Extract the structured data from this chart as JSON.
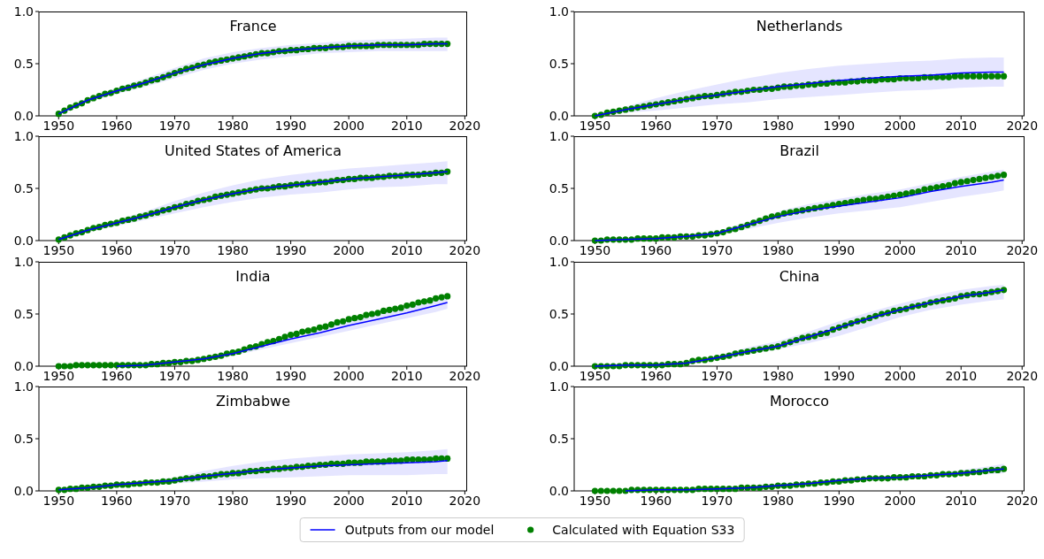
{
  "chart_data": [
    {
      "type": "line",
      "title": "France",
      "xlim": [
        1946.6,
        2020.4
      ],
      "xticks": [
        1950,
        1960,
        1970,
        1980,
        1990,
        2000,
        2010,
        2020
      ],
      "ylim": [
        0,
        1
      ],
      "yticks": [
        {
          "value": 0,
          "label": "0.0"
        },
        {
          "value": 0.5,
          "label": "0.5"
        },
        {
          "value": 1,
          "label": "1.0"
        }
      ],
      "x": [
        1950,
        1951,
        1952,
        1953,
        1954,
        1955,
        1956,
        1957,
        1958,
        1959,
        1960,
        1961,
        1962,
        1963,
        1964,
        1965,
        1966,
        1967,
        1968,
        1969,
        1970,
        1971,
        1972,
        1973,
        1974,
        1975,
        1976,
        1977,
        1978,
        1979,
        1980,
        1981,
        1982,
        1983,
        1984,
        1985,
        1986,
        1987,
        1988,
        1989,
        1990,
        1991,
        1992,
        1993,
        1994,
        1995,
        1996,
        1997,
        1998,
        1999,
        2000,
        2001,
        2002,
        2003,
        2004,
        2005,
        2006,
        2007,
        2008,
        2009,
        2010,
        2011,
        2012,
        2013,
        2014,
        2015,
        2016,
        2017
      ],
      "series": [
        {
          "color": "#0000ff",
          "x": [
            1950,
            1955,
            1960,
            1965,
            1970,
            1975,
            1980,
            1985,
            1990,
            1995,
            2000,
            2005,
            2010,
            2015,
            2017
          ],
          "values": [
            0.02,
            0.15,
            0.24,
            0.32,
            0.41,
            0.49,
            0.55,
            0.6,
            0.63,
            0.65,
            0.67,
            0.68,
            0.68,
            0.69,
            0.69
          ],
          "lower": [
            0.02,
            0.13,
            0.21,
            0.28,
            0.36,
            0.44,
            0.5,
            0.54,
            0.57,
            0.6,
            0.61,
            0.62,
            0.62,
            0.62,
            0.62
          ],
          "upper": [
            0.02,
            0.17,
            0.27,
            0.36,
            0.46,
            0.55,
            0.61,
            0.65,
            0.68,
            0.7,
            0.72,
            0.73,
            0.74,
            0.75,
            0.75
          ]
        },
        {
          "type": "scatter",
          "color": "#008000",
          "marker": "circle",
          "values": [
            0.02,
            0.05,
            0.08,
            0.1,
            0.12,
            0.15,
            0.17,
            0.19,
            0.21,
            0.22,
            0.24,
            0.26,
            0.27,
            0.29,
            0.3,
            0.32,
            0.34,
            0.35,
            0.37,
            0.39,
            0.41,
            0.43,
            0.45,
            0.46,
            0.48,
            0.49,
            0.51,
            0.52,
            0.53,
            0.54,
            0.55,
            0.56,
            0.57,
            0.58,
            0.59,
            0.6,
            0.6,
            0.61,
            0.62,
            0.62,
            0.63,
            0.63,
            0.64,
            0.64,
            0.65,
            0.65,
            0.65,
            0.66,
            0.66,
            0.66,
            0.67,
            0.67,
            0.67,
            0.67,
            0.67,
            0.68,
            0.68,
            0.68,
            0.68,
            0.68,
            0.68,
            0.68,
            0.68,
            0.69,
            0.69,
            0.69,
            0.69,
            0.69
          ]
        }
      ]
    },
    {
      "type": "line",
      "title": "Netherlands",
      "xlim": [
        1946.6,
        2020.4
      ],
      "xticks": [
        1950,
        1960,
        1970,
        1980,
        1990,
        2000,
        2010,
        2020
      ],
      "ylim": [
        0,
        1
      ],
      "yticks": [
        {
          "value": 0,
          "label": "0.0"
        },
        {
          "value": 0.5,
          "label": "0.5"
        },
        {
          "value": 1,
          "label": "1.0"
        }
      ],
      "x": [
        1950,
        1951,
        1952,
        1953,
        1954,
        1955,
        1956,
        1957,
        1958,
        1959,
        1960,
        1961,
        1962,
        1963,
        1964,
        1965,
        1966,
        1967,
        1968,
        1969,
        1970,
        1971,
        1972,
        1973,
        1974,
        1975,
        1976,
        1977,
        1978,
        1979,
        1980,
        1981,
        1982,
        1983,
        1984,
        1985,
        1986,
        1987,
        1988,
        1989,
        1990,
        1991,
        1992,
        1993,
        1994,
        1995,
        1996,
        1997,
        1998,
        1999,
        2000,
        2001,
        2002,
        2003,
        2004,
        2005,
        2006,
        2007,
        2008,
        2009,
        2010,
        2011,
        2012,
        2013,
        2014,
        2015,
        2016,
        2017
      ],
      "series": [
        {
          "color": "#0000ff",
          "x": [
            1950,
            1955,
            1960,
            1965,
            1970,
            1975,
            1980,
            1985,
            1990,
            1995,
            2000,
            2005,
            2010,
            2015,
            2017
          ],
          "values": [
            0,
            0.06,
            0.11,
            0.16,
            0.2,
            0.24,
            0.28,
            0.31,
            0.34,
            0.36,
            0.38,
            0.39,
            0.41,
            0.42,
            0.42
          ],
          "lower": [
            0,
            0.03,
            0.05,
            0.08,
            0.11,
            0.13,
            0.16,
            0.18,
            0.2,
            0.22,
            0.24,
            0.25,
            0.27,
            0.28,
            0.28
          ],
          "upper": [
            0,
            0.09,
            0.17,
            0.24,
            0.3,
            0.36,
            0.41,
            0.45,
            0.48,
            0.5,
            0.52,
            0.53,
            0.55,
            0.56,
            0.56
          ]
        },
        {
          "type": "scatter",
          "color": "#008000",
          "marker": "circle",
          "values": [
            0,
            0.01,
            0.03,
            0.04,
            0.05,
            0.06,
            0.07,
            0.08,
            0.09,
            0.1,
            0.11,
            0.12,
            0.13,
            0.14,
            0.15,
            0.16,
            0.17,
            0.18,
            0.19,
            0.19,
            0.2,
            0.21,
            0.22,
            0.23,
            0.23,
            0.24,
            0.25,
            0.25,
            0.26,
            0.26,
            0.27,
            0.28,
            0.28,
            0.29,
            0.29,
            0.3,
            0.3,
            0.31,
            0.31,
            0.32,
            0.32,
            0.32,
            0.33,
            0.33,
            0.34,
            0.34,
            0.34,
            0.35,
            0.35,
            0.35,
            0.36,
            0.36,
            0.36,
            0.36,
            0.37,
            0.37,
            0.37,
            0.37,
            0.37,
            0.38,
            0.38,
            0.38,
            0.38,
            0.38,
            0.38,
            0.38,
            0.38,
            0.38
          ]
        }
      ]
    },
    {
      "type": "line",
      "title": "United States of America",
      "xlim": [
        1946.6,
        2020.4
      ],
      "xticks": [
        1950,
        1960,
        1970,
        1980,
        1990,
        2000,
        2010,
        2020
      ],
      "ylim": [
        0,
        1
      ],
      "yticks": [
        {
          "value": 0,
          "label": "0.0"
        },
        {
          "value": 0.5,
          "label": "0.5"
        },
        {
          "value": 1,
          "label": "1.0"
        }
      ],
      "x": [
        1950,
        1951,
        1952,
        1953,
        1954,
        1955,
        1956,
        1957,
        1958,
        1959,
        1960,
        1961,
        1962,
        1963,
        1964,
        1965,
        1966,
        1967,
        1968,
        1969,
        1970,
        1971,
        1972,
        1973,
        1974,
        1975,
        1976,
        1977,
        1978,
        1979,
        1980,
        1981,
        1982,
        1983,
        1984,
        1985,
        1986,
        1987,
        1988,
        1989,
        1990,
        1991,
        1992,
        1993,
        1994,
        1995,
        1996,
        1997,
        1998,
        1999,
        2000,
        2001,
        2002,
        2003,
        2004,
        2005,
        2006,
        2007,
        2008,
        2009,
        2010,
        2011,
        2012,
        2013,
        2014,
        2015,
        2016,
        2017
      ],
      "series": [
        {
          "color": "#0000ff",
          "x": [
            1950,
            1955,
            1960,
            1965,
            1970,
            1975,
            1980,
            1985,
            1990,
            1995,
            2000,
            2005,
            2010,
            2015,
            2017
          ],
          "values": [
            0.01,
            0.1,
            0.17,
            0.24,
            0.32,
            0.39,
            0.45,
            0.5,
            0.53,
            0.56,
            0.59,
            0.61,
            0.63,
            0.65,
            0.66
          ],
          "lower": [
            0.01,
            0.08,
            0.14,
            0.2,
            0.26,
            0.32,
            0.37,
            0.41,
            0.44,
            0.46,
            0.49,
            0.51,
            0.52,
            0.54,
            0.54
          ],
          "upper": [
            0.01,
            0.12,
            0.2,
            0.28,
            0.38,
            0.46,
            0.53,
            0.59,
            0.63,
            0.66,
            0.69,
            0.71,
            0.73,
            0.75,
            0.76
          ]
        },
        {
          "type": "scatter",
          "color": "#008000",
          "marker": "circle",
          "values": [
            0.01,
            0.03,
            0.05,
            0.07,
            0.08,
            0.1,
            0.12,
            0.13,
            0.15,
            0.16,
            0.17,
            0.19,
            0.2,
            0.21,
            0.23,
            0.24,
            0.26,
            0.27,
            0.29,
            0.3,
            0.32,
            0.33,
            0.35,
            0.36,
            0.38,
            0.39,
            0.4,
            0.42,
            0.43,
            0.44,
            0.45,
            0.46,
            0.47,
            0.48,
            0.49,
            0.5,
            0.5,
            0.51,
            0.52,
            0.52,
            0.53,
            0.54,
            0.54,
            0.55,
            0.55,
            0.56,
            0.56,
            0.57,
            0.58,
            0.58,
            0.59,
            0.59,
            0.6,
            0.6,
            0.6,
            0.61,
            0.61,
            0.62,
            0.62,
            0.62,
            0.63,
            0.63,
            0.63,
            0.64,
            0.64,
            0.65,
            0.65,
            0.66
          ]
        }
      ]
    },
    {
      "type": "line",
      "title": "Brazil",
      "xlim": [
        1946.6,
        2020.4
      ],
      "xticks": [
        1950,
        1960,
        1970,
        1980,
        1990,
        2000,
        2010,
        2020
      ],
      "ylim": [
        0,
        1
      ],
      "yticks": [
        {
          "value": 0,
          "label": "0.0"
        },
        {
          "value": 0.5,
          "label": "0.5"
        },
        {
          "value": 1,
          "label": "1.0"
        }
      ],
      "x": [
        1950,
        1951,
        1952,
        1953,
        1954,
        1955,
        1956,
        1957,
        1958,
        1959,
        1960,
        1961,
        1962,
        1963,
        1964,
        1965,
        1966,
        1967,
        1968,
        1969,
        1970,
        1971,
        1972,
        1973,
        1974,
        1975,
        1976,
        1977,
        1978,
        1979,
        1980,
        1981,
        1982,
        1983,
        1984,
        1985,
        1986,
        1987,
        1988,
        1989,
        1990,
        1991,
        1992,
        1993,
        1994,
        1995,
        1996,
        1997,
        1998,
        1999,
        2000,
        2001,
        2002,
        2003,
        2004,
        2005,
        2006,
        2007,
        2008,
        2009,
        2010,
        2011,
        2012,
        2013,
        2014,
        2015,
        2016,
        2017
      ],
      "series": [
        {
          "color": "#0000ff",
          "x": [
            1950,
            1955,
            1960,
            1965,
            1970,
            1975,
            1980,
            1985,
            1990,
            1995,
            2000,
            2005,
            2010,
            2015,
            2017
          ],
          "values": [
            0,
            0.01,
            0.02,
            0.04,
            0.07,
            0.15,
            0.23,
            0.29,
            0.33,
            0.37,
            0.41,
            0.47,
            0.52,
            0.56,
            0.58
          ],
          "lower": [
            0,
            0,
            0.01,
            0.03,
            0.05,
            0.11,
            0.17,
            0.22,
            0.26,
            0.29,
            0.32,
            0.37,
            0.42,
            0.46,
            0.48
          ],
          "upper": [
            0,
            0.02,
            0.03,
            0.05,
            0.09,
            0.18,
            0.28,
            0.35,
            0.4,
            0.45,
            0.49,
            0.55,
            0.61,
            0.66,
            0.68
          ]
        },
        {
          "type": "scatter",
          "color": "#008000",
          "marker": "circle",
          "values": [
            0,
            0,
            0.01,
            0.01,
            0.01,
            0.01,
            0.01,
            0.02,
            0.02,
            0.02,
            0.02,
            0.03,
            0.03,
            0.03,
            0.04,
            0.04,
            0.04,
            0.05,
            0.05,
            0.06,
            0.07,
            0.08,
            0.1,
            0.11,
            0.13,
            0.15,
            0.17,
            0.19,
            0.21,
            0.23,
            0.24,
            0.26,
            0.27,
            0.28,
            0.29,
            0.3,
            0.31,
            0.32,
            0.33,
            0.34,
            0.35,
            0.36,
            0.37,
            0.38,
            0.39,
            0.4,
            0.4,
            0.41,
            0.42,
            0.43,
            0.44,
            0.45,
            0.46,
            0.47,
            0.49,
            0.5,
            0.51,
            0.52,
            0.53,
            0.55,
            0.56,
            0.57,
            0.58,
            0.59,
            0.6,
            0.61,
            0.62,
            0.63
          ]
        }
      ]
    },
    {
      "type": "line",
      "title": "India",
      "xlim": [
        1946.6,
        2020.4
      ],
      "xticks": [
        1950,
        1960,
        1970,
        1980,
        1990,
        2000,
        2010,
        2020
      ],
      "ylim": [
        0,
        1
      ],
      "yticks": [
        {
          "value": 0,
          "label": "0.0"
        },
        {
          "value": 0.5,
          "label": "0.5"
        },
        {
          "value": 1,
          "label": "1.0"
        }
      ],
      "x": [
        1950,
        1951,
        1952,
        1953,
        1954,
        1955,
        1956,
        1957,
        1958,
        1959,
        1960,
        1961,
        1962,
        1963,
        1964,
        1965,
        1966,
        1967,
        1968,
        1969,
        1970,
        1971,
        1972,
        1973,
        1974,
        1975,
        1976,
        1977,
        1978,
        1979,
        1980,
        1981,
        1982,
        1983,
        1984,
        1985,
        1986,
        1987,
        1988,
        1989,
        1990,
        1991,
        1992,
        1993,
        1994,
        1995,
        1996,
        1997,
        1998,
        1999,
        2000,
        2001,
        2002,
        2003,
        2004,
        2005,
        2006,
        2007,
        2008,
        2009,
        2010,
        2011,
        2012,
        2013,
        2014,
        2015,
        2016,
        2017
      ],
      "series": [
        {
          "color": "#0000ff",
          "x": [
            1950,
            1955,
            1960,
            1965,
            1970,
            1975,
            1980,
            1985,
            1990,
            1995,
            2000,
            2005,
            2010,
            2015,
            2017
          ],
          "values": [
            null,
            null,
            0,
            0.01,
            0.04,
            0.07,
            0.12,
            0.19,
            0.26,
            0.32,
            0.39,
            0.45,
            0.51,
            0.58,
            0.61
          ],
          "lower": [
            0,
            0,
            0,
            0,
            0.03,
            0.05,
            0.1,
            0.16,
            0.22,
            0.28,
            0.34,
            0.4,
            0.46,
            0.52,
            0.55
          ],
          "upper": [
            0,
            0.01,
            0.01,
            0.02,
            0.05,
            0.09,
            0.14,
            0.22,
            0.3,
            0.37,
            0.44,
            0.51,
            0.57,
            0.63,
            0.66
          ]
        },
        {
          "type": "scatter",
          "color": "#008000",
          "marker": "circle",
          "values": [
            0,
            0,
            0,
            0.01,
            0.01,
            0.01,
            0.01,
            0.01,
            0.01,
            0.01,
            0.01,
            0.01,
            0.01,
            0.01,
            0.01,
            0.01,
            0.02,
            0.02,
            0.03,
            0.03,
            0.04,
            0.04,
            0.05,
            0.05,
            0.06,
            0.07,
            0.08,
            0.09,
            0.1,
            0.12,
            0.13,
            0.14,
            0.16,
            0.18,
            0.19,
            0.21,
            0.23,
            0.24,
            0.26,
            0.28,
            0.3,
            0.31,
            0.33,
            0.34,
            0.35,
            0.37,
            0.38,
            0.4,
            0.42,
            0.43,
            0.45,
            0.46,
            0.47,
            0.49,
            0.5,
            0.51,
            0.53,
            0.54,
            0.55,
            0.56,
            0.58,
            0.59,
            0.61,
            0.62,
            0.63,
            0.65,
            0.66,
            0.67
          ]
        }
      ]
    },
    {
      "type": "line",
      "title": "China",
      "xlim": [
        1946.6,
        2020.4
      ],
      "xticks": [
        1950,
        1960,
        1970,
        1980,
        1990,
        2000,
        2010,
        2020
      ],
      "ylim": [
        0,
        1
      ],
      "yticks": [
        {
          "value": 0,
          "label": "0.0"
        },
        {
          "value": 0.5,
          "label": "0.5"
        },
        {
          "value": 1,
          "label": "1.0"
        }
      ],
      "x": [
        1950,
        1951,
        1952,
        1953,
        1954,
        1955,
        1956,
        1957,
        1958,
        1959,
        1960,
        1961,
        1962,
        1963,
        1964,
        1965,
        1966,
        1967,
        1968,
        1969,
        1970,
        1971,
        1972,
        1973,
        1974,
        1975,
        1976,
        1977,
        1978,
        1979,
        1980,
        1981,
        1982,
        1983,
        1984,
        1985,
        1986,
        1987,
        1988,
        1989,
        1990,
        1991,
        1992,
        1993,
        1994,
        1995,
        1996,
        1997,
        1998,
        1999,
        2000,
        2001,
        2002,
        2003,
        2004,
        2005,
        2006,
        2007,
        2008,
        2009,
        2010,
        2011,
        2012,
        2013,
        2014,
        2015,
        2016,
        2017
      ],
      "series": [
        {
          "color": "#0000ff",
          "x": [
            1950,
            1955,
            1960,
            1965,
            1970,
            1975,
            1980,
            1985,
            1990,
            1995,
            2000,
            2005,
            2010,
            2015,
            2017
          ],
          "values": [
            0,
            0.01,
            0.01,
            0.03,
            0.08,
            0.14,
            0.19,
            0.28,
            0.37,
            0.46,
            0.54,
            0.61,
            0.67,
            0.71,
            0.73
          ],
          "lower": [
            0,
            0,
            0.01,
            0.02,
            0.06,
            0.11,
            0.16,
            0.22,
            0.29,
            0.38,
            0.47,
            0.54,
            0.59,
            0.63,
            0.64
          ],
          "upper": [
            0,
            0.01,
            0.02,
            0.04,
            0.1,
            0.18,
            0.24,
            0.33,
            0.43,
            0.52,
            0.6,
            0.67,
            0.73,
            0.77,
            0.78
          ]
        },
        {
          "type": "scatter",
          "color": "#008000",
          "marker": "circle",
          "values": [
            0,
            0,
            0,
            0,
            0,
            0.01,
            0.01,
            0.01,
            0.01,
            0.01,
            0.01,
            0.01,
            0.02,
            0.02,
            0.02,
            0.03,
            0.05,
            0.06,
            0.06,
            0.07,
            0.08,
            0.09,
            0.1,
            0.12,
            0.13,
            0.14,
            0.15,
            0.16,
            0.17,
            0.18,
            0.19,
            0.21,
            0.23,
            0.25,
            0.27,
            0.28,
            0.29,
            0.31,
            0.32,
            0.35,
            0.37,
            0.39,
            0.41,
            0.43,
            0.44,
            0.46,
            0.48,
            0.5,
            0.51,
            0.53,
            0.54,
            0.55,
            0.57,
            0.58,
            0.59,
            0.61,
            0.62,
            0.63,
            0.64,
            0.65,
            0.67,
            0.68,
            0.69,
            0.69,
            0.7,
            0.71,
            0.72,
            0.73
          ]
        }
      ]
    },
    {
      "type": "line",
      "title": "Zimbabwe",
      "xlim": [
        1946.6,
        2020.4
      ],
      "xticks": [
        1950,
        1960,
        1970,
        1980,
        1990,
        2000,
        2010,
        2020
      ],
      "ylim": [
        0,
        1
      ],
      "yticks": [
        {
          "value": 0,
          "label": "0.0"
        },
        {
          "value": 0.5,
          "label": "0.5"
        },
        {
          "value": 1,
          "label": "1.0"
        }
      ],
      "x": [
        1950,
        1951,
        1952,
        1953,
        1954,
        1955,
        1956,
        1957,
        1958,
        1959,
        1960,
        1961,
        1962,
        1963,
        1964,
        1965,
        1966,
        1967,
        1968,
        1969,
        1970,
        1971,
        1972,
        1973,
        1974,
        1975,
        1976,
        1977,
        1978,
        1979,
        1980,
        1981,
        1982,
        1983,
        1984,
        1985,
        1986,
        1987,
        1988,
        1989,
        1990,
        1991,
        1992,
        1993,
        1994,
        1995,
        1996,
        1997,
        1998,
        1999,
        2000,
        2001,
        2002,
        2003,
        2004,
        2005,
        2006,
        2007,
        2008,
        2009,
        2010,
        2011,
        2012,
        2013,
        2014,
        2015,
        2016,
        2017
      ],
      "series": [
        {
          "color": "#0000ff",
          "x": [
            1950,
            1955,
            1960,
            1965,
            1970,
            1975,
            1980,
            1985,
            1990,
            1995,
            2000,
            2005,
            2010,
            2015,
            2017
          ],
          "values": [
            0.01,
            0.03,
            0.06,
            0.08,
            0.1,
            0.14,
            0.17,
            0.2,
            0.22,
            0.24,
            0.25,
            0.26,
            0.27,
            0.28,
            0.29
          ],
          "lower": [
            0.01,
            0.02,
            0.04,
            0.06,
            0.07,
            0.09,
            0.11,
            0.12,
            0.13,
            0.14,
            0.15,
            0.15,
            0.15,
            0.16,
            0.16
          ],
          "upper": [
            0.01,
            0.04,
            0.07,
            0.1,
            0.13,
            0.19,
            0.24,
            0.28,
            0.31,
            0.33,
            0.35,
            0.36,
            0.37,
            0.39,
            0.4
          ]
        },
        {
          "type": "scatter",
          "color": "#008000",
          "marker": "circle",
          "values": [
            0.01,
            0.01,
            0.02,
            0.02,
            0.03,
            0.03,
            0.04,
            0.04,
            0.05,
            0.05,
            0.06,
            0.06,
            0.06,
            0.07,
            0.07,
            0.08,
            0.08,
            0.08,
            0.09,
            0.09,
            0.1,
            0.11,
            0.12,
            0.12,
            0.13,
            0.14,
            0.14,
            0.15,
            0.16,
            0.16,
            0.17,
            0.17,
            0.18,
            0.19,
            0.19,
            0.2,
            0.2,
            0.21,
            0.21,
            0.22,
            0.22,
            0.23,
            0.23,
            0.24,
            0.24,
            0.25,
            0.25,
            0.26,
            0.26,
            0.26,
            0.27,
            0.27,
            0.27,
            0.28,
            0.28,
            0.28,
            0.28,
            0.29,
            0.29,
            0.29,
            0.3,
            0.3,
            0.3,
            0.3,
            0.3,
            0.31,
            0.31,
            0.31
          ]
        }
      ]
    },
    {
      "type": "line",
      "title": "Morocco",
      "xlim": [
        1946.6,
        2020.4
      ],
      "xticks": [
        1950,
        1960,
        1970,
        1980,
        1990,
        2000,
        2010,
        2020
      ],
      "ylim": [
        0,
        1
      ],
      "yticks": [
        {
          "value": 0,
          "label": "0.0"
        },
        {
          "value": 0.5,
          "label": "0.5"
        },
        {
          "value": 1,
          "label": "1.0"
        }
      ],
      "legend": "bottom",
      "x": [
        1950,
        1951,
        1952,
        1953,
        1954,
        1955,
        1956,
        1957,
        1958,
        1959,
        1960,
        1961,
        1962,
        1963,
        1964,
        1965,
        1966,
        1967,
        1968,
        1969,
        1970,
        1971,
        1972,
        1973,
        1974,
        1975,
        1976,
        1977,
        1978,
        1979,
        1980,
        1981,
        1982,
        1983,
        1984,
        1985,
        1986,
        1987,
        1988,
        1989,
        1990,
        1991,
        1992,
        1993,
        1994,
        1995,
        1996,
        1997,
        1998,
        1999,
        2000,
        2001,
        2002,
        2003,
        2004,
        2005,
        2006,
        2007,
        2008,
        2009,
        2010,
        2011,
        2012,
        2013,
        2014,
        2015,
        2016,
        2017
      ],
      "series": [
        {
          "name": "Outputs from our model",
          "color": "#0000ff",
          "x": [
            1950,
            1955,
            1960,
            1965,
            1970,
            1975,
            1980,
            1985,
            1990,
            1995,
            2000,
            2005,
            2010,
            2015,
            2017
          ],
          "values": [
            null,
            0,
            0.01,
            0.01,
            0.02,
            0.03,
            0.05,
            0.07,
            0.1,
            0.12,
            0.13,
            0.15,
            0.17,
            0.2,
            0.21
          ],
          "lower": [
            0,
            0,
            0.01,
            0.01,
            0.02,
            0.02,
            0.04,
            0.06,
            0.08,
            0.1,
            0.11,
            0.13,
            0.15,
            0.16,
            0.17
          ],
          "upper": [
            0,
            0.01,
            0.01,
            0.02,
            0.02,
            0.04,
            0.06,
            0.08,
            0.11,
            0.13,
            0.15,
            0.17,
            0.2,
            0.24,
            0.26
          ]
        },
        {
          "type": "scatter",
          "name": "Calculated with Equation S33",
          "color": "#008000",
          "marker": "circle",
          "values": [
            0,
            0,
            0,
            0,
            0,
            0,
            0.01,
            0.01,
            0.01,
            0.01,
            0.01,
            0.01,
            0.01,
            0.01,
            0.01,
            0.01,
            0.01,
            0.02,
            0.02,
            0.02,
            0.02,
            0.02,
            0.02,
            0.02,
            0.03,
            0.03,
            0.03,
            0.03,
            0.04,
            0.04,
            0.05,
            0.05,
            0.05,
            0.06,
            0.06,
            0.07,
            0.07,
            0.08,
            0.08,
            0.09,
            0.09,
            0.1,
            0.1,
            0.11,
            0.11,
            0.12,
            0.12,
            0.12,
            0.12,
            0.13,
            0.13,
            0.13,
            0.14,
            0.14,
            0.14,
            0.15,
            0.15,
            0.16,
            0.16,
            0.16,
            0.17,
            0.17,
            0.18,
            0.18,
            0.19,
            0.2,
            0.2,
            0.21
          ]
        }
      ]
    }
  ]
}
